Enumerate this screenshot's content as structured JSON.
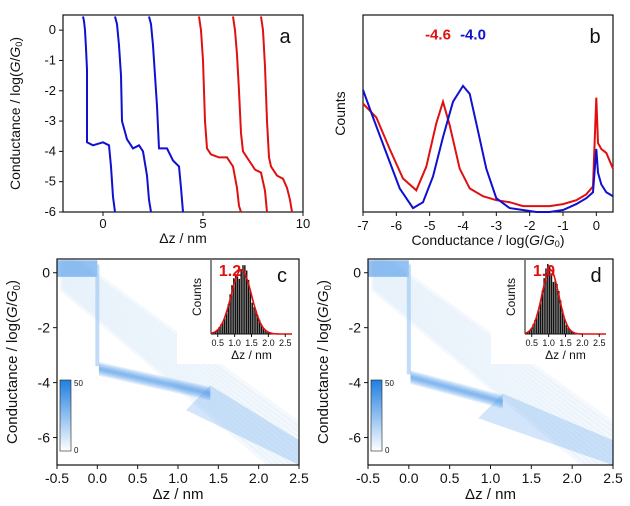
{
  "panels": {
    "a": {
      "letter": "a"
    },
    "b": {
      "letter": "b"
    },
    "c": {
      "letter": "c"
    },
    "d": {
      "letter": "d"
    }
  },
  "chart_data": [
    {
      "id": "a",
      "type": "line",
      "xlabel": "Δz / nm",
      "ylabel": "Conductance / log(G/G₀)",
      "xlim": [
        -2,
        10
      ],
      "ylim": [
        -6,
        0.5
      ],
      "xticks": [
        0,
        5,
        10
      ],
      "yticks": [
        0,
        -1,
        -2,
        -3,
        -4,
        -5,
        -6
      ],
      "series": [
        {
          "color": "#1010d0",
          "x": [
            -1.0,
            -0.95,
            -0.9,
            -0.85,
            -0.8,
            -0.8,
            -0.5,
            0.0,
            0.3,
            0.4,
            0.5,
            0.6
          ],
          "y": [
            0.45,
            0.3,
            0.0,
            -0.6,
            -1.3,
            -3.7,
            -3.8,
            -3.7,
            -3.8,
            -4.5,
            -5.5,
            -6.0
          ]
        },
        {
          "color": "#1010d0",
          "x": [
            0.6,
            0.7,
            0.8,
            0.9,
            0.95,
            1.2,
            1.5,
            1.8,
            2.0,
            2.2,
            2.3,
            2.4
          ],
          "y": [
            0.45,
            0.2,
            -0.5,
            -1.5,
            -3.0,
            -3.6,
            -3.9,
            -3.8,
            -4.0,
            -4.8,
            -5.6,
            -6.0
          ]
        },
        {
          "color": "#1010d0",
          "x": [
            2.3,
            2.4,
            2.5,
            2.6,
            2.7,
            2.8,
            3.2,
            3.5,
            3.8,
            3.9,
            4.0
          ],
          "y": [
            0.45,
            0.2,
            -0.5,
            -1.5,
            -2.5,
            -3.9,
            -3.9,
            -4.3,
            -4.5,
            -5.2,
            -6.0
          ]
        },
        {
          "color": "#e01010",
          "x": [
            4.8,
            4.9,
            5.0,
            5.1,
            5.2,
            5.4,
            5.8,
            6.2,
            6.5,
            6.7,
            6.8,
            6.9
          ],
          "y": [
            0.45,
            0.0,
            -1.0,
            -3.0,
            -3.9,
            -4.1,
            -4.2,
            -4.2,
            -4.5,
            -5.2,
            -5.8,
            -6.0
          ]
        },
        {
          "color": "#e01010",
          "x": [
            6.5,
            6.6,
            6.7,
            6.8,
            6.9,
            7.0,
            7.3,
            7.6,
            7.9,
            8.1,
            8.2
          ],
          "y": [
            0.45,
            0.0,
            -0.8,
            -2.0,
            -3.4,
            -4.0,
            -4.3,
            -4.6,
            -4.7,
            -5.3,
            -6.0
          ]
        },
        {
          "color": "#e01010",
          "x": [
            7.9,
            8.0,
            8.1,
            8.2,
            8.3,
            8.4,
            8.7,
            9.0,
            9.2,
            9.35,
            9.45
          ],
          "y": [
            0.45,
            0.0,
            -1.2,
            -3.0,
            -4.2,
            -4.5,
            -4.8,
            -4.9,
            -5.2,
            -5.6,
            -6.0
          ]
        }
      ]
    },
    {
      "id": "b",
      "type": "line",
      "xlabel": "Conductance / log(G/G₀)",
      "ylabel": "Counts",
      "xlim": [
        -7,
        0.5
      ],
      "ylim": [
        0,
        1
      ],
      "xticks": [
        -7,
        -6,
        -5,
        -4,
        -3,
        -2,
        -1,
        0
      ],
      "annotations": [
        {
          "text": "-4.6",
          "color": "#e01010",
          "x": -4.75,
          "y": 0.9
        },
        {
          "text": "-4.0",
          "color": "#1010d0",
          "x": -3.7,
          "y": 0.9
        }
      ],
      "series": [
        {
          "color": "#e01010",
          "x": [
            -7.0,
            -6.6,
            -6.2,
            -5.8,
            -5.4,
            -5.1,
            -4.8,
            -4.6,
            -4.4,
            -4.1,
            -3.8,
            -3.4,
            -3.0,
            -2.6,
            -2.2,
            -1.8,
            -1.4,
            -1.0,
            -0.6,
            -0.3,
            -0.1,
            0.0,
            0.05,
            0.15,
            0.3,
            0.5
          ],
          "y": [
            0.55,
            0.48,
            0.32,
            0.17,
            0.11,
            0.23,
            0.45,
            0.56,
            0.44,
            0.22,
            0.12,
            0.08,
            0.06,
            0.05,
            0.03,
            0.03,
            0.03,
            0.04,
            0.06,
            0.09,
            0.13,
            0.58,
            0.35,
            0.32,
            0.3,
            0.22
          ]
        },
        {
          "color": "#1010d0",
          "x": [
            -7.0,
            -6.7,
            -6.3,
            -5.9,
            -5.5,
            -5.2,
            -4.9,
            -4.6,
            -4.3,
            -4.0,
            -3.8,
            -3.6,
            -3.3,
            -3.0,
            -2.6,
            -2.2,
            -1.8,
            -1.4,
            -1.0,
            -0.6,
            -0.3,
            -0.1,
            0.0,
            0.05,
            0.15,
            0.3,
            0.5
          ],
          "y": [
            0.62,
            0.48,
            0.3,
            0.12,
            0.02,
            0.05,
            0.18,
            0.38,
            0.56,
            0.64,
            0.6,
            0.45,
            0.22,
            0.07,
            0.02,
            0.01,
            0.0,
            0.0,
            0.01,
            0.04,
            0.07,
            0.1,
            0.32,
            0.2,
            0.14,
            0.1,
            0.08
          ]
        }
      ]
    },
    {
      "id": "c",
      "type": "heatmap",
      "xlabel": "Δz / nm",
      "ylabel": "Conductance / log(G/G₀)",
      "xlim": [
        -0.5,
        2.5
      ],
      "ylim": [
        -7,
        0.5
      ],
      "xticks": [
        -0.5,
        0.0,
        0.5,
        1.0,
        1.5,
        2.0,
        2.5
      ],
      "yticks": [
        0,
        -2,
        -4,
        -6
      ],
      "colorbar": {
        "min": 0,
        "max": 50,
        "ticks": [
          "50",
          "0"
        ]
      },
      "plateau": {
        "x_end": 1.4,
        "y_start": -3.4,
        "y_end": -4.3
      },
      "inset": {
        "value_label": "1.2",
        "xlabel": "Δz / nm",
        "ylabel": "Counts",
        "xticks": [
          "0.5",
          "1.0",
          "1.5",
          "2.0",
          "2.5"
        ],
        "xlim": [
          0.3,
          2.7
        ],
        "mean": 1.2,
        "sigma": 0.3
      }
    },
    {
      "id": "d",
      "type": "heatmap",
      "xlabel": "Δz / nm",
      "ylabel": "Conductance / log(G/G₀)",
      "xlim": [
        -0.5,
        2.5
      ],
      "ylim": [
        -7,
        0.5
      ],
      "xticks": [
        -0.5,
        0.0,
        0.5,
        1.0,
        1.5,
        2.0,
        2.5
      ],
      "yticks": [
        0,
        -2,
        -4,
        -6
      ],
      "colorbar": {
        "min": 0,
        "max": 50,
        "ticks": [
          "50",
          "0"
        ]
      },
      "plateau": {
        "x_end": 1.15,
        "y_start": -3.7,
        "y_end": -4.6
      },
      "inset": {
        "value_label": "1.0",
        "xlabel": "Δz / nm",
        "ylabel": "Counts",
        "xticks": [
          "0.5",
          "1.0",
          "1.5",
          "2.0",
          "2.5"
        ],
        "xlim": [
          0.3,
          2.7
        ],
        "mean": 1.05,
        "sigma": 0.25
      }
    }
  ]
}
